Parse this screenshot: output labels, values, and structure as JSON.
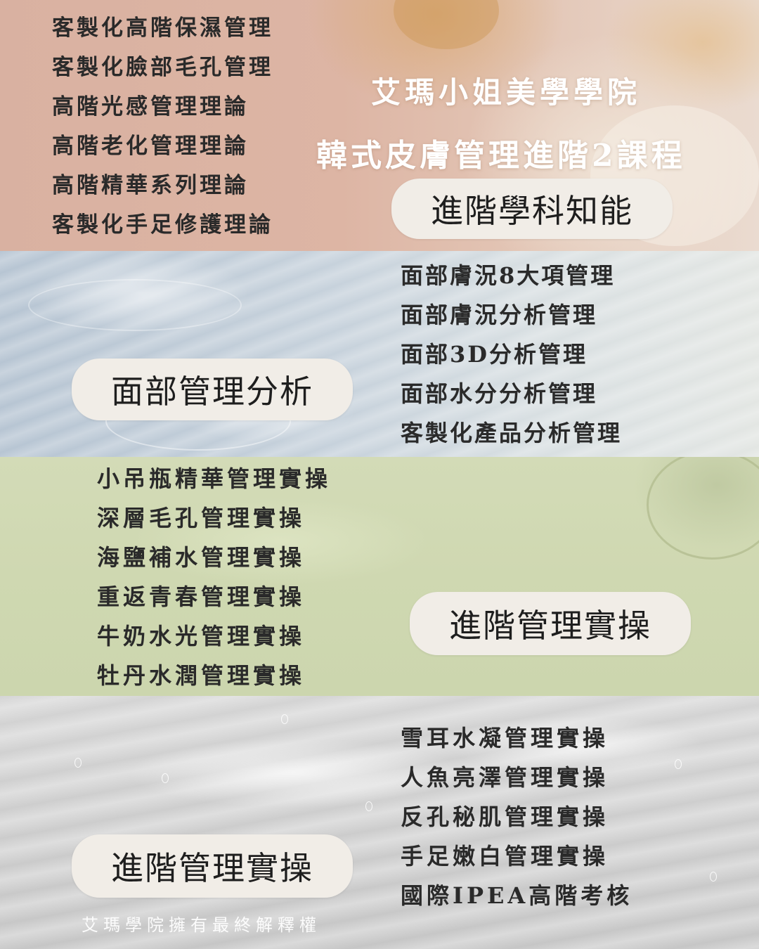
{
  "header": {
    "title_line1": "艾瑪小姐美學學院",
    "title_line2": "韓式皮膚管理進階2課程"
  },
  "sections": [
    {
      "pill_label": "進階學科知能",
      "items": [
        "客製化高階保濕管理",
        "客製化臉部毛孔管理",
        "高階光感管理理論",
        "高階老化管理理論",
        "高階精華系列理論",
        "客製化手足修護理論"
      ]
    },
    {
      "pill_label": "面部管理分析",
      "items": [
        "面部膚況8大項管理",
        "面部膚況分析管理",
        "面部3D分析管理",
        "面部水分分析管理",
        "客製化產品分析管理"
      ]
    },
    {
      "pill_label": "進階管理實操",
      "items": [
        "小吊瓶精華管理實操",
        "深層毛孔管理實操",
        "海鹽補水管理實操",
        "重返青春管理實操",
        "牛奶水光管理實操",
        "牡丹水潤管理實操"
      ]
    },
    {
      "pill_label": "進階管理實操",
      "items": [
        "雪耳水凝管理實操",
        "人魚亮澤管理實操",
        "反孔秘肌管理實操",
        "手足嫩白管理實操",
        "國際IPEA高階考核"
      ]
    }
  ],
  "footer": {
    "disclaimer": "艾瑪學院擁有最終解釋權"
  },
  "colors": {
    "pill_background": "#f1ede7",
    "text_dark": "#2a2a2a",
    "band_pink": "#d9b1a1",
    "band_blue": "#c7d2dc",
    "band_green": "#cfd8b1",
    "band_grey": "#cdcdcd"
  }
}
